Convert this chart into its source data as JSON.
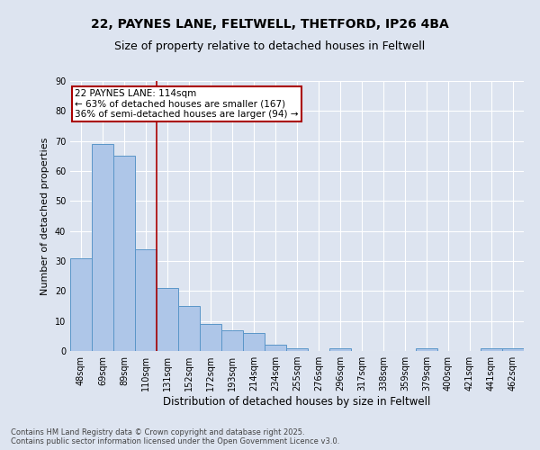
{
  "title_line1": "22, PAYNES LANE, FELTWELL, THETFORD, IP26 4BA",
  "title_line2": "Size of property relative to detached houses in Feltwell",
  "categories": [
    "48sqm",
    "69sqm",
    "89sqm",
    "110sqm",
    "131sqm",
    "152sqm",
    "172sqm",
    "193sqm",
    "214sqm",
    "234sqm",
    "255sqm",
    "276sqm",
    "296sqm",
    "317sqm",
    "338sqm",
    "359sqm",
    "379sqm",
    "400sqm",
    "421sqm",
    "441sqm",
    "462sqm"
  ],
  "values": [
    31,
    69,
    65,
    34,
    21,
    15,
    9,
    7,
    6,
    2,
    1,
    0,
    1,
    0,
    0,
    0,
    1,
    0,
    0,
    1,
    1
  ],
  "bar_color": "#aec6e8",
  "bar_edge_color": "#5a96c8",
  "vline_x_index": 3.5,
  "vline_color": "#aa0000",
  "annotation_text": "22 PAYNES LANE: 114sqm\n← 63% of detached houses are smaller (167)\n36% of semi-detached houses are larger (94) →",
  "annotation_box_edgecolor": "#aa0000",
  "annotation_fontsize": 7.5,
  "ylabel": "Number of detached properties",
  "xlabel": "Distribution of detached houses by size in Feltwell",
  "ylim": [
    0,
    90
  ],
  "yticks": [
    0,
    10,
    20,
    30,
    40,
    50,
    60,
    70,
    80,
    90
  ],
  "background_color": "#dde4f0",
  "plot_bg_color": "#dde4f0",
  "grid_color": "#ffffff",
  "footer_line1": "Contains HM Land Registry data © Crown copyright and database right 2025.",
  "footer_line2": "Contains public sector information licensed under the Open Government Licence v3.0.",
  "title_fontsize": 10,
  "subtitle_fontsize": 9,
  "xlabel_fontsize": 8.5,
  "ylabel_fontsize": 8,
  "tick_fontsize": 7,
  "footer_fontsize": 6
}
